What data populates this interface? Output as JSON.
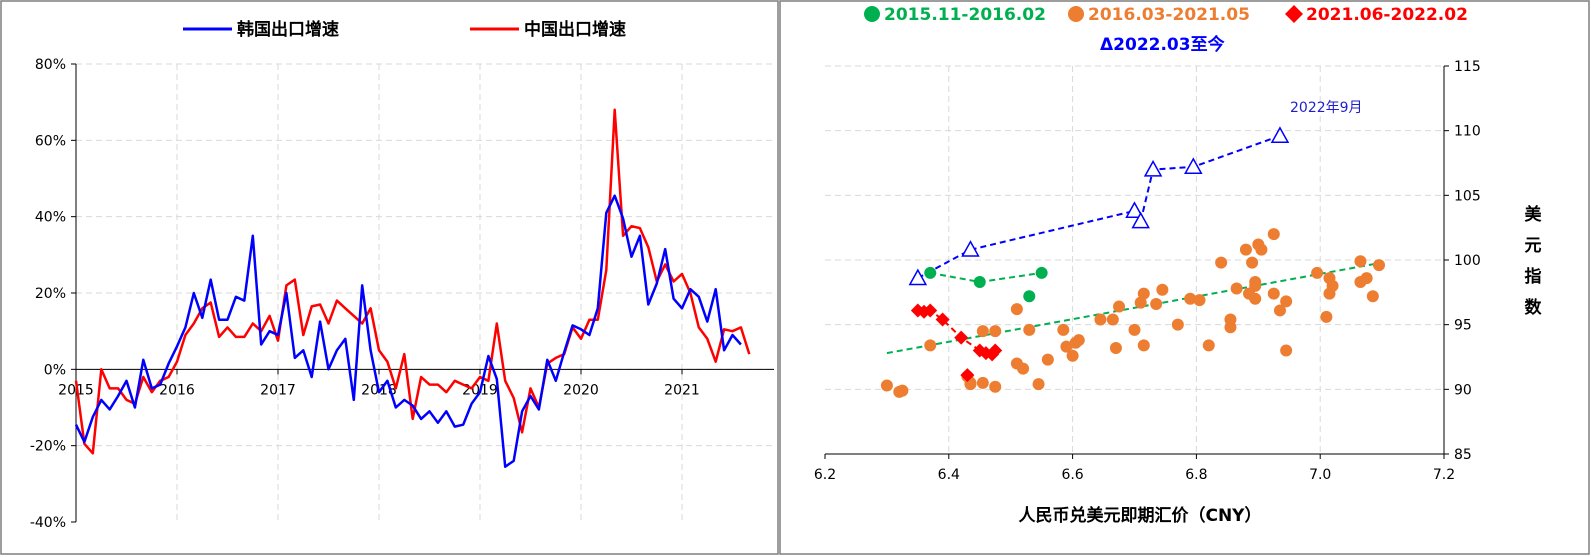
{
  "chart_data": [
    {
      "type": "line",
      "legend": [
        "韩国出口增速",
        "中国出口增速"
      ],
      "legend_position": "top",
      "x_tick_labels": [
        "2015",
        "2016",
        "2017",
        "2018",
        "2019",
        "2020",
        "2021"
      ],
      "x_start": 2015.0,
      "x_step_months": 1,
      "ylim": [
        -40,
        80
      ],
      "y_tick_labels": [
        "-40%",
        "-20%",
        "0%",
        "20%",
        "40%",
        "60%",
        "80%"
      ],
      "y_ticks": [
        -40,
        -20,
        0,
        20,
        40,
        60,
        80
      ],
      "grid": true,
      "series": [
        {
          "name": "韩国出口增速",
          "color": "#0000ff",
          "values": [
            -14.5,
            -19,
            -12.5,
            -8,
            -10.5,
            -7,
            -3,
            -10,
            2.5,
            -5,
            -4,
            1.5,
            6,
            11,
            20,
            13.5,
            23.5,
            13,
            13,
            19,
            18,
            35,
            6.5,
            10,
            9,
            20,
            3,
            5,
            -2,
            12.5,
            0,
            5,
            8,
            -8,
            22,
            5,
            -6,
            -3,
            -10,
            -8,
            -9.5,
            -13,
            -11,
            -14,
            -11,
            -15,
            -14.5,
            -9,
            -6,
            3.5,
            -2.5,
            -25.5,
            -24,
            -11,
            -7,
            -10.5,
            2.5,
            -3,
            4.5,
            11.5,
            10.5,
            9,
            16,
            41,
            45.5,
            39.5,
            29.5,
            35,
            17,
            22.5,
            31.5,
            18.5,
            16,
            21,
            19,
            12.5,
            21,
            5,
            9,
            6.5
          ]
        },
        {
          "name": "中国出口增速",
          "color": "#ff0000",
          "values": [
            -3,
            -19.5,
            -22,
            0,
            -5,
            -5,
            -8,
            -9,
            -2,
            -6,
            -3,
            -2,
            2,
            9,
            12,
            16,
            17.5,
            8.5,
            11,
            8.5,
            8.5,
            12,
            10,
            14,
            7.5,
            22,
            23.5,
            9,
            16.5,
            17,
            12,
            18,
            16,
            14,
            12,
            16,
            5,
            2,
            -5,
            4,
            -13,
            -2,
            -4,
            -4,
            -6,
            -3,
            -4,
            -5,
            -2,
            -3,
            12,
            -3,
            -7.5,
            -16.5,
            -5,
            -10,
            1.5,
            3,
            4,
            11,
            8,
            13,
            13,
            26,
            68,
            35,
            37.5,
            37,
            32,
            23,
            27.5,
            23,
            25,
            20,
            11,
            8,
            2,
            10.5,
            10,
            11,
            4
          ]
        }
      ]
    },
    {
      "type": "scatter",
      "xlabel": "人民币兑美元即期汇价（CNY）",
      "ylabel": "美元指数",
      "xlim": [
        6.2,
        7.2
      ],
      "ylim": [
        85,
        115
      ],
      "x_ticks": [
        6.2,
        6.4,
        6.6,
        6.8,
        7.0,
        7.2
      ],
      "x_tick_labels": [
        "6.2",
        "6.4",
        "6.6",
        "6.8",
        "7.0",
        "7.2"
      ],
      "y_ticks": [
        85,
        90,
        95,
        100,
        105,
        110,
        115
      ],
      "y_tick_labels": [
        "85",
        "90",
        "95",
        "100",
        "105",
        "110",
        "115"
      ],
      "y_axis_side": "right",
      "grid": true,
      "legend_position": "top",
      "annotations": [
        {
          "text": "2022年9月",
          "x": 6.86,
          "y": 111.9
        }
      ],
      "series": [
        {
          "name": "2015.11-2016.02",
          "marker": "circle",
          "color": "#00b050",
          "legend_label": "2015.11-2016.02",
          "points": [
            [
              6.37,
              99.0
            ],
            [
              6.45,
              98.3
            ],
            [
              6.55,
              99.0
            ],
            [
              6.53,
              97.2
            ]
          ],
          "trend": [
            [
              6.37,
              99.0
            ],
            [
              6.45,
              98.3
            ],
            [
              6.55,
              99.0
            ]
          ],
          "trend_color": "#00b050"
        },
        {
          "name": "2016.03-2021.05",
          "marker": "circle",
          "color": "#ed7d31",
          "legend_label": "2016.03-2021.05",
          "points": [
            [
              6.3,
              90.3
            ],
            [
              6.32,
              89.8
            ],
            [
              6.325,
              89.9
            ],
            [
              6.37,
              93.4
            ],
            [
              6.43,
              91.0
            ],
            [
              6.435,
              90.5
            ],
            [
              6.435,
              90.4
            ],
            [
              6.455,
              94.5
            ],
            [
              6.455,
              90.5
            ],
            [
              6.475,
              94.5
            ],
            [
              6.475,
              90.2
            ],
            [
              6.51,
              96.2
            ],
            [
              6.51,
              92.0
            ],
            [
              6.52,
              91.6
            ],
            [
              6.53,
              94.6
            ],
            [
              6.545,
              90.4
            ],
            [
              6.56,
              92.3
            ],
            [
              6.585,
              94.6
            ],
            [
              6.59,
              93.3
            ],
            [
              6.6,
              92.6
            ],
            [
              6.605,
              93.6
            ],
            [
              6.61,
              93.8
            ],
            [
              6.645,
              95.4
            ],
            [
              6.665,
              95.4
            ],
            [
              6.67,
              93.2
            ],
            [
              6.675,
              96.4
            ],
            [
              6.7,
              94.6
            ],
            [
              6.71,
              96.7
            ],
            [
              6.715,
              97.4
            ],
            [
              6.715,
              93.4
            ],
            [
              6.735,
              96.6
            ],
            [
              6.745,
              97.7
            ],
            [
              6.77,
              95.0
            ],
            [
              6.79,
              97.0
            ],
            [
              6.805,
              96.9
            ],
            [
              6.82,
              93.4
            ],
            [
              6.84,
              99.8
            ],
            [
              6.855,
              95.4
            ],
            [
              6.855,
              94.8
            ],
            [
              6.865,
              97.8
            ],
            [
              6.88,
              100.8
            ],
            [
              6.885,
              97.4
            ],
            [
              6.89,
              99.8
            ],
            [
              6.895,
              98.0
            ],
            [
              6.895,
              98.3
            ],
            [
              6.895,
              97.0
            ],
            [
              6.9,
              101.2
            ],
            [
              6.905,
              100.8
            ],
            [
              6.925,
              102.0
            ],
            [
              6.925,
              97.4
            ],
            [
              6.935,
              96.1
            ],
            [
              6.945,
              96.8
            ],
            [
              6.945,
              93.0
            ],
            [
              6.995,
              99.0
            ],
            [
              7.01,
              95.6
            ],
            [
              7.015,
              97.4
            ],
            [
              7.015,
              98.6
            ],
            [
              7.02,
              98.0
            ],
            [
              7.065,
              99.9
            ],
            [
              7.065,
              98.3
            ],
            [
              7.075,
              98.6
            ],
            [
              7.085,
              97.2
            ],
            [
              7.095,
              99.6
            ]
          ],
          "trend": [
            [
              6.3,
              92.8
            ],
            [
              7.1,
              99.8
            ]
          ],
          "trend_color": "#00b050"
        },
        {
          "name": "2021.06-2022.02",
          "marker": "diamond",
          "color": "#ff0000",
          "legend_label": "2021.06-2022.02",
          "points": [
            [
              6.35,
              96.1
            ],
            [
              6.36,
              96.0
            ],
            [
              6.37,
              96.1
            ],
            [
              6.39,
              95.4
            ],
            [
              6.42,
              94.0
            ],
            [
              6.45,
              93.0
            ],
            [
              6.46,
              92.8
            ],
            [
              6.47,
              92.7
            ],
            [
              6.475,
              93.0
            ],
            [
              6.43,
              91.1
            ]
          ],
          "trend": [
            [
              6.35,
              96.1
            ],
            [
              6.37,
              96.1
            ],
            [
              6.39,
              95.4
            ],
            [
              6.42,
              94.0
            ],
            [
              6.45,
              93.0
            ],
            [
              6.47,
              92.7
            ]
          ],
          "trend_color": "#ff0000"
        },
        {
          "name": "2022.03至今",
          "marker": "triangle",
          "color": "#0000ff",
          "legend_label": "Δ2022.03至今",
          "points": [
            [
              6.35,
              98.6
            ],
            [
              6.435,
              100.8
            ],
            [
              6.7,
              103.8
            ],
            [
              6.71,
              103.0
            ],
            [
              6.73,
              107.0
            ],
            [
              6.795,
              107.2
            ],
            [
              6.935,
              109.6
            ]
          ],
          "trend": [
            [
              6.35,
              98.6
            ],
            [
              6.435,
              100.8
            ],
            [
              6.7,
              103.8
            ],
            [
              6.71,
              103.0
            ],
            [
              6.73,
              107.0
            ],
            [
              6.795,
              107.2
            ],
            [
              6.935,
              109.6
            ]
          ],
          "trend_color": "#0000ff"
        }
      ]
    }
  ]
}
